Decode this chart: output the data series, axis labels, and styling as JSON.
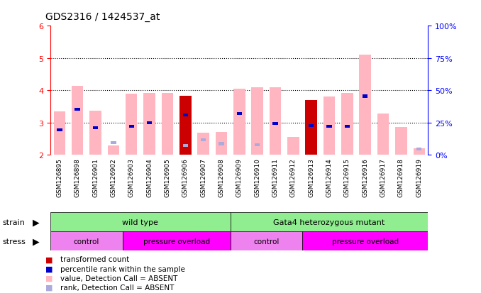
{
  "title": "GDS2316 / 1424537_at",
  "samples": [
    "GSM126895",
    "GSM126898",
    "GSM126901",
    "GSM126902",
    "GSM126903",
    "GSM126904",
    "GSM126905",
    "GSM126906",
    "GSM126907",
    "GSM126908",
    "GSM126909",
    "GSM126910",
    "GSM126911",
    "GSM126912",
    "GSM126913",
    "GSM126914",
    "GSM126915",
    "GSM126916",
    "GSM126917",
    "GSM126918",
    "GSM126919"
  ],
  "pink_bar_top": [
    3.35,
    4.15,
    3.38,
    2.3,
    3.9,
    3.92,
    3.92,
    3.83,
    2.7,
    2.72,
    4.05,
    4.1,
    4.1,
    2.55,
    3.7,
    3.8,
    3.92,
    5.1,
    3.28,
    2.87,
    2.2
  ],
  "red_bar_top": [
    0,
    0,
    0,
    0,
    0,
    0,
    0,
    3.83,
    0,
    0,
    0,
    0,
    0,
    0,
    3.7,
    0,
    0,
    0,
    0,
    0,
    0
  ],
  "blue_bar_top": [
    2.78,
    3.42,
    2.85,
    0,
    2.88,
    3.0,
    0,
    3.23,
    0,
    0,
    3.28,
    0,
    2.98,
    0,
    2.9,
    2.88,
    2.88,
    3.82,
    0,
    0,
    0
  ],
  "lightblue_bar_top": [
    0,
    0,
    0,
    2.38,
    0,
    0,
    0,
    2.3,
    2.48,
    2.35,
    0,
    2.32,
    0,
    0,
    0,
    0,
    0,
    0,
    0,
    0,
    2.18
  ],
  "ymin": 2.0,
  "ymax": 6.0,
  "yticks_left": [
    2,
    3,
    4,
    5,
    6
  ],
  "yticks_right": [
    0,
    25,
    50,
    75,
    100
  ],
  "pink_color": "#FFB6C1",
  "red_color": "#CC0000",
  "blue_color": "#0000CC",
  "lightblue_color": "#AAAADD",
  "strain_color": "#90EE90",
  "stress_control_color": "#EE82EE",
  "stress_pressure_color": "#FF00FF",
  "left_axis_color": "#FF0000",
  "right_axis_color": "#0000FF"
}
